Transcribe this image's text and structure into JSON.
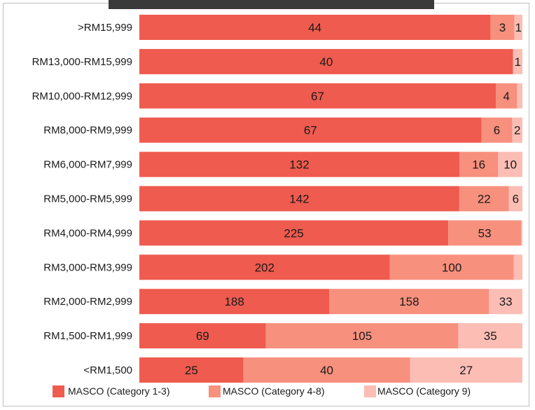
{
  "chart_data": {
    "type": "bar",
    "orientation": "horizontal",
    "stacked": "percent",
    "categories": [
      ">RM15,999",
      "RM13,000-RM15,999",
      "RM10,000-RM12,999",
      "RM8,000-RM9,999",
      "RM6,000-RM7,999",
      "RM5,000-RM5,999",
      "RM4,000-RM4,999",
      "RM3,000-RM3,999",
      "RM2,000-RM2,999",
      "RM1,500-RM1,999",
      "<RM1,500"
    ],
    "series": [
      {
        "name": "MASCO (Category 1-3)",
        "color": "#ef5b4f",
        "values": [
          44,
          40,
          67,
          67,
          132,
          142,
          225,
          202,
          188,
          69,
          25
        ]
      },
      {
        "name": "MASCO (Category 4-8)",
        "color": "#f7907d",
        "values": [
          3,
          0,
          4,
          6,
          16,
          22,
          53,
          100,
          158,
          105,
          40
        ]
      },
      {
        "name": "MASCO (Category 9)",
        "color": "#fcbdb4",
        "values": [
          1,
          1,
          1,
          2,
          10,
          6,
          1,
          7,
          33,
          35,
          27
        ]
      }
    ],
    "shown_labels": [
      [
        "44",
        "3",
        "1"
      ],
      [
        "40",
        "",
        "1"
      ],
      [
        "67",
        "4",
        ""
      ],
      [
        "67",
        "6",
        "2"
      ],
      [
        "132",
        "16",
        "10"
      ],
      [
        "142",
        "22",
        "6"
      ],
      [
        "225",
        "53",
        ""
      ],
      [
        "202",
        "100",
        ""
      ],
      [
        "188",
        "158",
        "33"
      ],
      [
        "69",
        "105",
        "35"
      ],
      [
        "25",
        "40",
        "27"
      ]
    ],
    "legend_position": "bottom",
    "grid": false
  }
}
